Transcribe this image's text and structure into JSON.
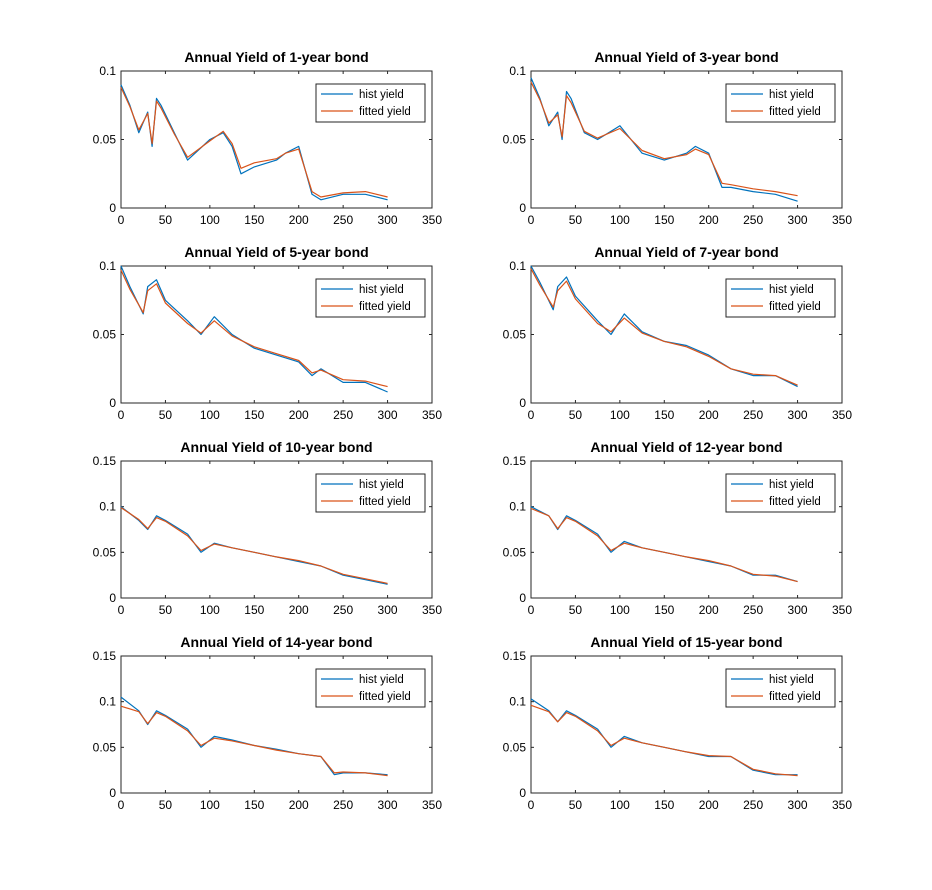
{
  "colors": {
    "hist": "#0072BD",
    "fitted": "#D95319",
    "axis": "#262626",
    "text": "#000000"
  },
  "chart_data": [
    {
      "type": "line",
      "title": "Annual Yield of 1-year bond",
      "xlim": [
        0,
        350
      ],
      "ylim": [
        0,
        0.1
      ],
      "xticks": [
        0,
        50,
        100,
        150,
        200,
        250,
        300,
        350
      ],
      "yticks": [
        0,
        0.05,
        0.1
      ],
      "ytick_labels": [
        "0",
        "0.05",
        "0.1"
      ],
      "legend_position": "top-right",
      "grid": false,
      "x": [
        0,
        10,
        20,
        30,
        35,
        40,
        45,
        60,
        75,
        100,
        115,
        125,
        135,
        150,
        175,
        185,
        200,
        215,
        225,
        250,
        275,
        300
      ],
      "series": [
        {
          "name": "hist yield",
          "color": "#0072BD",
          "values": [
            0.09,
            0.075,
            0.055,
            0.07,
            0.045,
            0.08,
            0.075,
            0.055,
            0.035,
            0.05,
            0.055,
            0.045,
            0.025,
            0.03,
            0.035,
            0.04,
            0.045,
            0.01,
            0.006,
            0.01,
            0.01,
            0.006
          ]
        },
        {
          "name": "fitted yield",
          "color": "#D95319",
          "values": [
            0.088,
            0.074,
            0.057,
            0.069,
            0.047,
            0.078,
            0.073,
            0.054,
            0.037,
            0.049,
            0.056,
            0.047,
            0.029,
            0.033,
            0.036,
            0.04,
            0.043,
            0.012,
            0.008,
            0.011,
            0.012,
            0.008
          ]
        }
      ]
    },
    {
      "type": "line",
      "title": "Annual Yield of 3-year bond",
      "xlim": [
        0,
        350
      ],
      "ylim": [
        0,
        0.1
      ],
      "xticks": [
        0,
        50,
        100,
        150,
        200,
        250,
        300,
        350
      ],
      "yticks": [
        0,
        0.05,
        0.1
      ],
      "ytick_labels": [
        "0",
        "0.05",
        "0.1"
      ],
      "legend_position": "top-right",
      "grid": false,
      "x": [
        0,
        10,
        20,
        30,
        35,
        40,
        45,
        60,
        75,
        100,
        125,
        150,
        175,
        185,
        200,
        215,
        225,
        250,
        275,
        300
      ],
      "series": [
        {
          "name": "hist yield",
          "color": "#0072BD",
          "values": [
            0.095,
            0.08,
            0.06,
            0.07,
            0.05,
            0.085,
            0.08,
            0.055,
            0.05,
            0.06,
            0.04,
            0.035,
            0.04,
            0.045,
            0.04,
            0.015,
            0.015,
            0.012,
            0.01,
            0.005
          ]
        },
        {
          "name": "fitted yield",
          "color": "#D95319",
          "values": [
            0.092,
            0.079,
            0.062,
            0.068,
            0.052,
            0.082,
            0.077,
            0.056,
            0.051,
            0.058,
            0.042,
            0.036,
            0.039,
            0.043,
            0.039,
            0.018,
            0.017,
            0.014,
            0.012,
            0.009
          ]
        }
      ]
    },
    {
      "type": "line",
      "title": "Annual Yield of 5-year bond",
      "xlim": [
        0,
        350
      ],
      "ylim": [
        0,
        0.1
      ],
      "xticks": [
        0,
        50,
        100,
        150,
        200,
        250,
        300,
        350
      ],
      "yticks": [
        0,
        0.05,
        0.1
      ],
      "ytick_labels": [
        "0",
        "0.05",
        "0.1"
      ],
      "legend_position": "top-right",
      "grid": false,
      "x": [
        0,
        10,
        25,
        30,
        40,
        50,
        75,
        90,
        105,
        125,
        150,
        175,
        200,
        215,
        225,
        250,
        275,
        300
      ],
      "series": [
        {
          "name": "hist yield",
          "color": "#0072BD",
          "values": [
            0.1,
            0.085,
            0.065,
            0.085,
            0.09,
            0.075,
            0.06,
            0.05,
            0.063,
            0.05,
            0.04,
            0.035,
            0.03,
            0.02,
            0.025,
            0.015,
            0.015,
            0.008
          ]
        },
        {
          "name": "fitted yield",
          "color": "#D95319",
          "values": [
            0.097,
            0.083,
            0.066,
            0.082,
            0.087,
            0.073,
            0.058,
            0.051,
            0.06,
            0.049,
            0.041,
            0.036,
            0.031,
            0.022,
            0.024,
            0.017,
            0.016,
            0.012
          ]
        }
      ]
    },
    {
      "type": "line",
      "title": "Annual Yield of 7-year bond",
      "xlim": [
        0,
        350
      ],
      "ylim": [
        0,
        0.1
      ],
      "xticks": [
        0,
        50,
        100,
        150,
        200,
        250,
        300,
        350
      ],
      "yticks": [
        0,
        0.05,
        0.1
      ],
      "ytick_labels": [
        "0",
        "0.05",
        "0.1"
      ],
      "legend_position": "top-right",
      "grid": false,
      "x": [
        0,
        10,
        25,
        30,
        40,
        50,
        75,
        90,
        105,
        125,
        150,
        175,
        200,
        225,
        250,
        275,
        300
      ],
      "series": [
        {
          "name": "hist yield",
          "color": "#0072BD",
          "values": [
            0.1,
            0.088,
            0.068,
            0.085,
            0.092,
            0.078,
            0.06,
            0.05,
            0.065,
            0.052,
            0.045,
            0.042,
            0.035,
            0.025,
            0.02,
            0.02,
            0.012
          ]
        },
        {
          "name": "fitted yield",
          "color": "#D95319",
          "values": [
            0.098,
            0.086,
            0.07,
            0.082,
            0.089,
            0.076,
            0.058,
            0.052,
            0.062,
            0.051,
            0.045,
            0.041,
            0.034,
            0.025,
            0.021,
            0.02,
            0.013
          ]
        }
      ]
    },
    {
      "type": "line",
      "title": "Annual Yield of 10-year bond",
      "xlim": [
        0,
        350
      ],
      "ylim": [
        0,
        0.15
      ],
      "xticks": [
        0,
        50,
        100,
        150,
        200,
        250,
        300,
        350
      ],
      "yticks": [
        0,
        0.05,
        0.1,
        0.15
      ],
      "ytick_labels": [
        "0",
        "0.05",
        "0.1",
        "0.15"
      ],
      "legend_position": "top-right",
      "grid": false,
      "x": [
        0,
        20,
        30,
        40,
        50,
        75,
        90,
        105,
        125,
        150,
        175,
        200,
        225,
        250,
        275,
        300
      ],
      "series": [
        {
          "name": "hist yield",
          "color": "#0072BD",
          "values": [
            0.1,
            0.085,
            0.075,
            0.09,
            0.085,
            0.07,
            0.05,
            0.06,
            0.055,
            0.05,
            0.045,
            0.04,
            0.035,
            0.025,
            0.02,
            0.015
          ]
        },
        {
          "name": "fitted yield",
          "color": "#D95319",
          "values": [
            0.099,
            0.086,
            0.076,
            0.088,
            0.084,
            0.068,
            0.052,
            0.059,
            0.055,
            0.05,
            0.045,
            0.041,
            0.035,
            0.026,
            0.021,
            0.016
          ]
        }
      ]
    },
    {
      "type": "line",
      "title": "Annual Yield of 12-year bond",
      "xlim": [
        0,
        350
      ],
      "ylim": [
        0,
        0.15
      ],
      "xticks": [
        0,
        50,
        100,
        150,
        200,
        250,
        300,
        350
      ],
      "yticks": [
        0,
        0.05,
        0.1,
        0.15
      ],
      "ytick_labels": [
        "0",
        "0.05",
        "0.1",
        "0.15"
      ],
      "legend_position": "top-right",
      "grid": false,
      "x": [
        0,
        20,
        30,
        40,
        50,
        75,
        90,
        105,
        125,
        150,
        175,
        200,
        225,
        250,
        275,
        300
      ],
      "series": [
        {
          "name": "hist yield",
          "color": "#0072BD",
          "values": [
            0.1,
            0.09,
            0.075,
            0.09,
            0.085,
            0.07,
            0.05,
            0.062,
            0.055,
            0.05,
            0.045,
            0.04,
            0.035,
            0.025,
            0.025,
            0.018
          ]
        },
        {
          "name": "fitted yield",
          "color": "#D95319",
          "values": [
            0.098,
            0.09,
            0.076,
            0.088,
            0.084,
            0.068,
            0.052,
            0.06,
            0.055,
            0.05,
            0.045,
            0.041,
            0.035,
            0.026,
            0.024,
            0.018
          ]
        }
      ]
    },
    {
      "type": "line",
      "title": "Annual Yield of 14-year bond",
      "xlim": [
        0,
        350
      ],
      "ylim": [
        0,
        0.15
      ],
      "xticks": [
        0,
        50,
        100,
        150,
        200,
        250,
        300,
        350
      ],
      "yticks": [
        0,
        0.05,
        0.1,
        0.15
      ],
      "ytick_labels": [
        "0",
        "0.05",
        "0.1",
        "0.15"
      ],
      "legend_position": "top-right",
      "grid": false,
      "x": [
        0,
        20,
        30,
        40,
        50,
        75,
        90,
        105,
        125,
        150,
        175,
        200,
        225,
        240,
        250,
        275,
        300
      ],
      "series": [
        {
          "name": "hist yield",
          "color": "#0072BD",
          "values": [
            0.105,
            0.09,
            0.075,
            0.09,
            0.085,
            0.07,
            0.05,
            0.062,
            0.058,
            0.052,
            0.048,
            0.043,
            0.04,
            0.02,
            0.022,
            0.022,
            0.02
          ]
        },
        {
          "name": "fitted yield",
          "color": "#D95319",
          "values": [
            0.095,
            0.089,
            0.076,
            0.088,
            0.084,
            0.068,
            0.052,
            0.06,
            0.057,
            0.052,
            0.047,
            0.043,
            0.04,
            0.022,
            0.023,
            0.022,
            0.019
          ]
        }
      ]
    },
    {
      "type": "line",
      "title": "Annual Yield of 15-year bond",
      "xlim": [
        0,
        350
      ],
      "ylim": [
        0,
        0.15
      ],
      "xticks": [
        0,
        50,
        100,
        150,
        200,
        250,
        300,
        350
      ],
      "yticks": [
        0,
        0.05,
        0.1,
        0.15
      ],
      "ytick_labels": [
        "0",
        "0.05",
        "0.1",
        "0.15"
      ],
      "legend_position": "top-right",
      "grid": false,
      "x": [
        0,
        20,
        30,
        40,
        50,
        75,
        90,
        105,
        125,
        150,
        175,
        200,
        225,
        250,
        275,
        300
      ],
      "series": [
        {
          "name": "hist yield",
          "color": "#0072BD",
          "values": [
            0.103,
            0.09,
            0.078,
            0.09,
            0.085,
            0.07,
            0.05,
            0.062,
            0.055,
            0.05,
            0.045,
            0.04,
            0.04,
            0.025,
            0.02,
            0.02
          ]
        },
        {
          "name": "fitted yield",
          "color": "#D95319",
          "values": [
            0.096,
            0.089,
            0.078,
            0.088,
            0.084,
            0.068,
            0.052,
            0.06,
            0.055,
            0.05,
            0.045,
            0.041,
            0.04,
            0.026,
            0.021,
            0.019
          ]
        }
      ]
    }
  ]
}
